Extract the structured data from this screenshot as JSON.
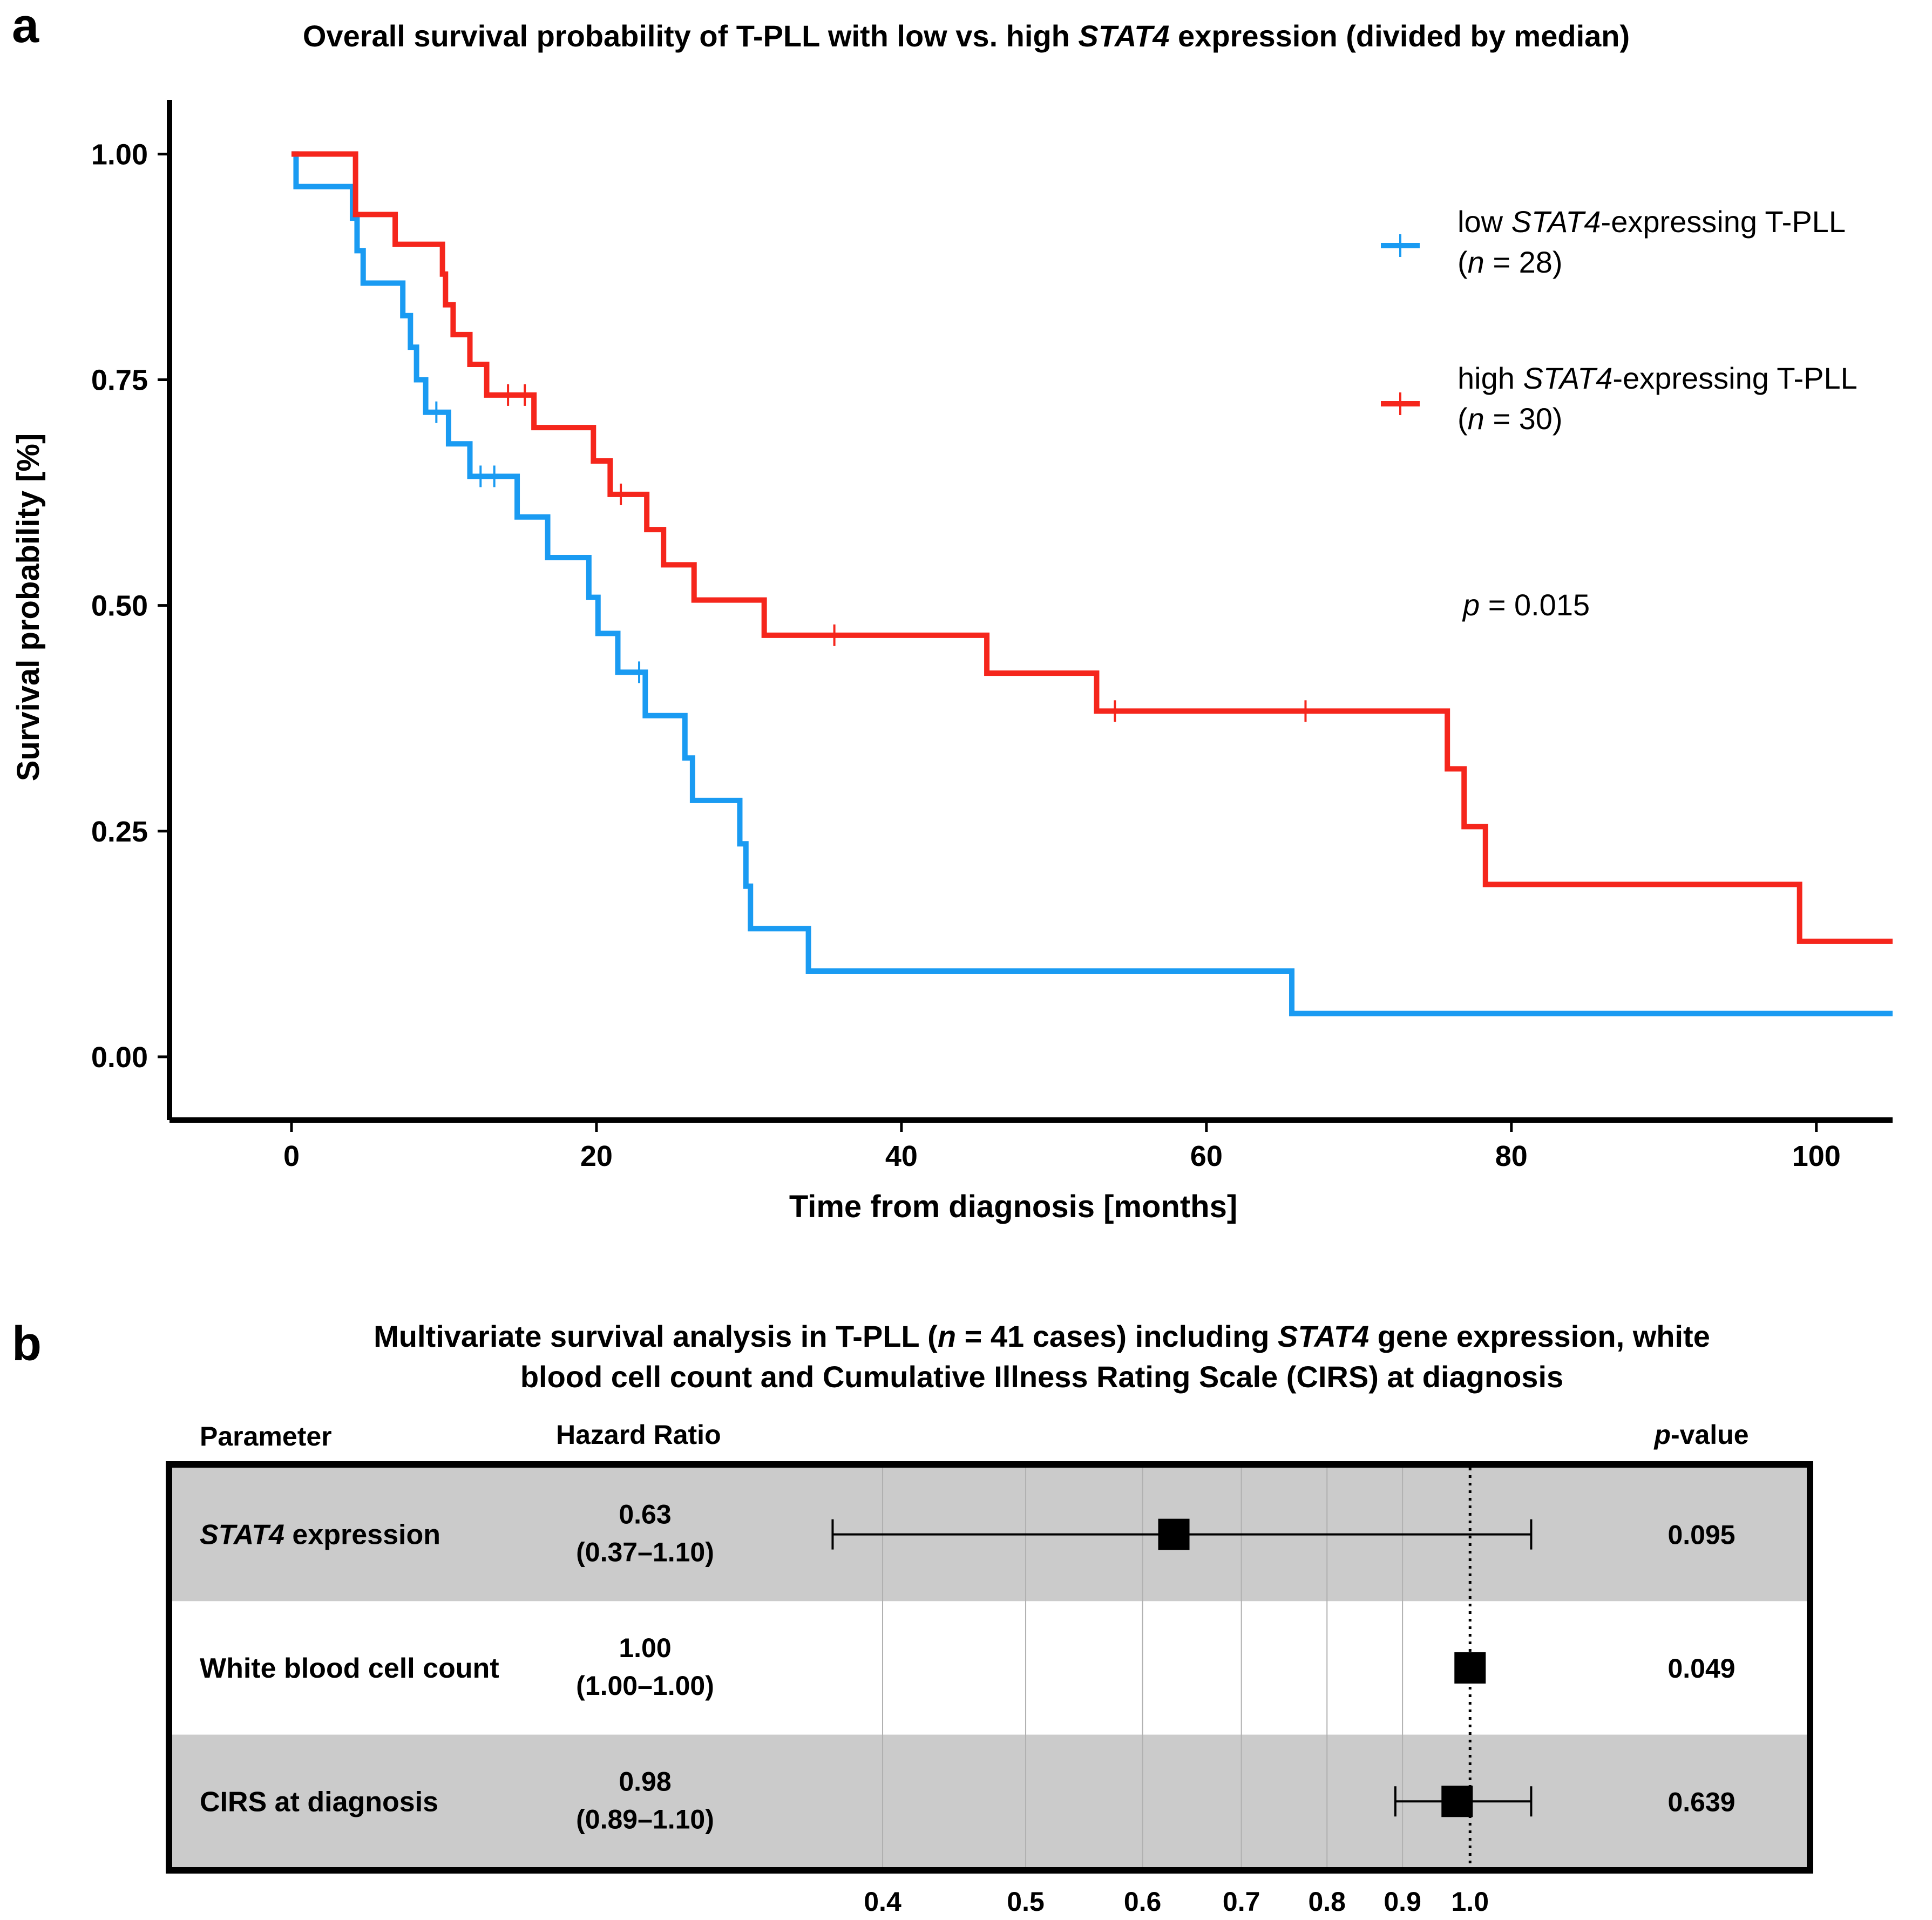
{
  "chart_data": [
    {
      "type": "line",
      "panel_label": "a",
      "title": {
        "prefix": "Overall survival probability of T-PLL with low vs. high ",
        "gene": "STAT4",
        "suffix": " expression (divided by median)"
      },
      "xlabel": "Time from diagnosis [months]",
      "ylabel": "Survival probability [%]",
      "xlim": [
        -8,
        105
      ],
      "ylim": [
        -0.07,
        1.06
      ],
      "xticks": [
        0,
        20,
        40,
        60,
        80,
        100
      ],
      "yticks": [
        0.0,
        0.25,
        0.5,
        0.75,
        1.0
      ],
      "ytick_labels": [
        "0.00",
        "0.25",
        "0.50",
        "0.75",
        "1.00"
      ],
      "legend_position": "right",
      "series": [
        {
          "color": "#1a9bf2",
          "legend_prefix": "low ",
          "legend_gene": "STAT4",
          "legend_suffix": "-expressing T-PLL",
          "legend_n_prefix": "(",
          "legend_n_italic": "n",
          "legend_n_suffix": " = 28)",
          "steps": [
            [
              0,
              1.0
            ],
            [
              0.3,
              0.964
            ],
            [
              4,
              0.929
            ],
            [
              4.3,
              0.893
            ],
            [
              4.7,
              0.857
            ],
            [
              7.3,
              0.821
            ],
            [
              7.8,
              0.786
            ],
            [
              8.2,
              0.75
            ],
            [
              8.8,
              0.714
            ],
            [
              10.3,
              0.679
            ],
            [
              11.7,
              0.643
            ],
            [
              14.8,
              0.598
            ],
            [
              16.8,
              0.553
            ],
            [
              19.5,
              0.509
            ],
            [
              20.1,
              0.469
            ],
            [
              21.4,
              0.426
            ],
            [
              23.2,
              0.378
            ],
            [
              25.8,
              0.331
            ],
            [
              26.3,
              0.284
            ],
            [
              29.4,
              0.236
            ],
            [
              29.8,
              0.189
            ],
            [
              30.1,
              0.142
            ],
            [
              33.9,
              0.095
            ],
            [
              65.6,
              0.048
            ],
            [
              105,
              0.048
            ]
          ],
          "censors": [
            [
              9.5,
              0.714
            ],
            [
              12.4,
              0.643
            ],
            [
              13.3,
              0.643
            ],
            [
              22.8,
              0.426
            ]
          ]
        },
        {
          "color": "#f5261c",
          "legend_prefix": "high ",
          "legend_gene": "STAT4",
          "legend_suffix": "-expressing T-PLL",
          "legend_n_prefix": "(",
          "legend_n_italic": "n",
          "legend_n_suffix": " = 30)",
          "steps": [
            [
              0,
              1.0
            ],
            [
              4.2,
              0.933
            ],
            [
              6.8,
              0.9
            ],
            [
              9.9,
              0.867
            ],
            [
              10.1,
              0.833
            ],
            [
              10.6,
              0.8
            ],
            [
              11.7,
              0.767
            ],
            [
              12.8,
              0.733
            ],
            [
              15.9,
              0.697
            ],
            [
              19.8,
              0.66
            ],
            [
              20.9,
              0.623
            ],
            [
              23.3,
              0.584
            ],
            [
              24.4,
              0.545
            ],
            [
              26.4,
              0.506
            ],
            [
              31,
              0.467
            ],
            [
              45.6,
              0.425
            ],
            [
              52.8,
              0.383
            ],
            [
              75.8,
              0.319
            ],
            [
              76.9,
              0.255
            ],
            [
              78.3,
              0.191
            ],
            [
              98.9,
              0.128
            ],
            [
              105,
              0.128
            ]
          ],
          "censors": [
            [
              14.2,
              0.733
            ],
            [
              15.3,
              0.733
            ],
            [
              21.6,
              0.623
            ],
            [
              35.6,
              0.467
            ],
            [
              54,
              0.383
            ],
            [
              66.5,
              0.383
            ]
          ]
        }
      ],
      "annotation": {
        "italic": "p",
        "text": " = 0.015"
      }
    },
    {
      "type": "forest",
      "panel_label": "b",
      "title_line1": {
        "prefix": "Multivariate survival analysis in T-PLL (",
        "n_italic": "n",
        "n_text": " = 41 cases) including ",
        "gene": "STAT4",
        "suffix": " gene expression, white"
      },
      "title_line2": "blood cell count and Cumulative Illness Rating Scale (CIRS) at diagnosis",
      "header_parameter": "Parameter",
      "header_hr": "Hazard Ratio",
      "header_p_italic": "p",
      "header_p_suffix": "-value",
      "x_scale": "log",
      "xlim": [
        0.32,
        1.32
      ],
      "xticks": [
        0.4,
        0.5,
        0.6,
        0.7,
        0.8,
        0.9,
        1.0
      ],
      "xtick_labels": [
        "0.4",
        "0.5",
        "0.6",
        "0.7",
        "0.8",
        "0.9",
        "1.0"
      ],
      "reference_line": 1.0,
      "rows": [
        {
          "param_italic": "STAT4",
          "param_text": " expression",
          "hr": "0.63",
          "ci": "(0.37–1.10)",
          "p": "0.095",
          "hr_value": 0.63,
          "ci_low": 0.37,
          "ci_high": 1.1,
          "shaded": true
        },
        {
          "param_italic": "",
          "param_text": "White blood cell count",
          "hr": "1.00",
          "ci": "(1.00–1.00)",
          "p": "0.049",
          "hr_value": 1.0,
          "ci_low": 1.0,
          "ci_high": 1.0,
          "shaded": false
        },
        {
          "param_italic": "",
          "param_text": "CIRS at diagnosis",
          "hr": "0.98",
          "ci": "(0.89–1.10)",
          "p": "0.639",
          "hr_value": 0.98,
          "ci_low": 0.89,
          "ci_high": 1.1,
          "shaded": true
        }
      ]
    }
  ]
}
